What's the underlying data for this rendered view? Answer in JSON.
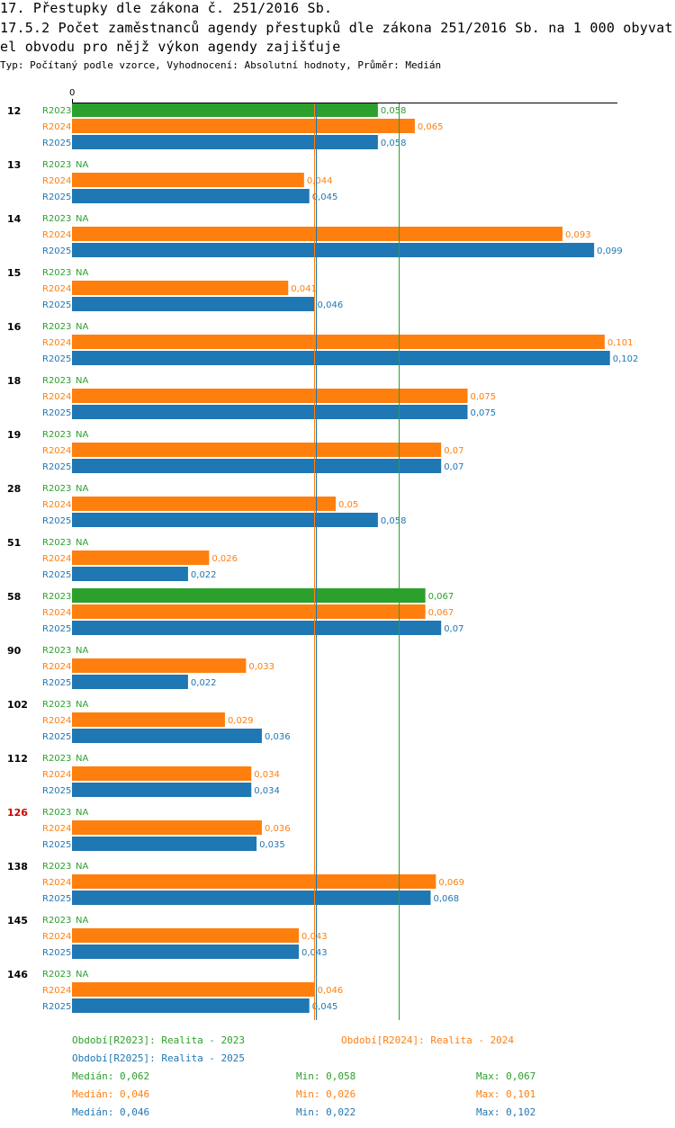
{
  "header": {
    "title_line1": "17. Přestupky dle zákona č. 251/2016 Sb.",
    "title_line2": "17.5.2 Počet zaměstnanců agendy přestupků dle zákona 251/2016 Sb. na 1 000 obyvat",
    "title_line3": "el obvodu pro nějž výkon agendy zajišťuje",
    "subtitle": "Typ: Počítaný podle vzorce, Vyhodnocení: Absolutní hodnoty, Průměr: Medián"
  },
  "colors": {
    "R2023": "#2ca02c",
    "R2024": "#ff7f0e",
    "R2025": "#1f77b4",
    "highlight": "#cc0000",
    "text": "#000000"
  },
  "chart_data": {
    "type": "bar",
    "orientation": "horizontal",
    "x_axis_zero_label": "0",
    "xlim": [
      0,
      0.1035
    ],
    "missing_label": "NA",
    "series_names": [
      "R2023",
      "R2024",
      "R2025"
    ],
    "categories": [
      {
        "label": "12",
        "highlight": false,
        "values": [
          0.058,
          0.065,
          0.058
        ],
        "labels": [
          "0,058",
          "0,065",
          "0,058"
        ]
      },
      {
        "label": "13",
        "highlight": false,
        "values": [
          null,
          0.044,
          0.045
        ],
        "labels": [
          "NA",
          "0,044",
          "0,045"
        ]
      },
      {
        "label": "14",
        "highlight": false,
        "values": [
          null,
          0.093,
          0.099
        ],
        "labels": [
          "NA",
          "0,093",
          "0,099"
        ]
      },
      {
        "label": "15",
        "highlight": false,
        "values": [
          null,
          0.041,
          0.046
        ],
        "labels": [
          "NA",
          "0,041",
          "0,046"
        ]
      },
      {
        "label": "16",
        "highlight": false,
        "values": [
          null,
          0.101,
          0.102
        ],
        "labels": [
          "NA",
          "0,101",
          "0,102"
        ]
      },
      {
        "label": "18",
        "highlight": false,
        "values": [
          null,
          0.075,
          0.075
        ],
        "labels": [
          "NA",
          "0,075",
          "0,075"
        ]
      },
      {
        "label": "19",
        "highlight": false,
        "values": [
          null,
          0.07,
          0.07
        ],
        "labels": [
          "NA",
          "0,07",
          "0,07"
        ]
      },
      {
        "label": "28",
        "highlight": false,
        "values": [
          null,
          0.05,
          0.058
        ],
        "labels": [
          "NA",
          "0,05",
          "0,058"
        ]
      },
      {
        "label": "51",
        "highlight": false,
        "values": [
          null,
          0.026,
          0.022
        ],
        "labels": [
          "NA",
          "0,026",
          "0,022"
        ]
      },
      {
        "label": "58",
        "highlight": false,
        "values": [
          0.067,
          0.067,
          0.07
        ],
        "labels": [
          "0,067",
          "0,067",
          "0,07"
        ]
      },
      {
        "label": "90",
        "highlight": false,
        "values": [
          null,
          0.033,
          0.022
        ],
        "labels": [
          "NA",
          "0,033",
          "0,022"
        ]
      },
      {
        "label": "102",
        "highlight": false,
        "values": [
          null,
          0.029,
          0.036
        ],
        "labels": [
          "NA",
          "0,029",
          "0,036"
        ]
      },
      {
        "label": "112",
        "highlight": false,
        "values": [
          null,
          0.034,
          0.034
        ],
        "labels": [
          "NA",
          "0,034",
          "0,034"
        ]
      },
      {
        "label": "126",
        "highlight": true,
        "values": [
          null,
          0.036,
          0.035
        ],
        "labels": [
          "NA",
          "0,036",
          "0,035"
        ]
      },
      {
        "label": "138",
        "highlight": false,
        "values": [
          null,
          0.069,
          0.068
        ],
        "labels": [
          "NA",
          "0,069",
          "0,068"
        ]
      },
      {
        "label": "145",
        "highlight": false,
        "values": [
          null,
          0.043,
          0.043
        ],
        "labels": [
          "NA",
          "0,043",
          "0,043"
        ]
      },
      {
        "label": "146",
        "highlight": false,
        "values": [
          null,
          0.046,
          0.045
        ],
        "labels": [
          "NA",
          "0,046",
          "0,045"
        ]
      }
    ],
    "median_lines": {
      "R2023": 0.062,
      "R2024": 0.046,
      "R2025": 0.046
    }
  },
  "legend": {
    "period_r2023": "Období[R2023]: Realita - 2023",
    "period_r2024": "Období[R2024]: Realita - 2024",
    "period_r2025": "Období[R2025]: Realita - 2025",
    "stats": [
      {
        "series": "R2023",
        "median": "Medián: 0,062",
        "min": "Min: 0,058",
        "max": "Max: 0,067"
      },
      {
        "series": "R2024",
        "median": "Medián: 0,046",
        "min": "Min: 0,026",
        "max": "Max: 0,101"
      },
      {
        "series": "R2025",
        "median": "Medián: 0,046",
        "min": "Min: 0,022",
        "max": "Max: 0,102"
      }
    ]
  }
}
